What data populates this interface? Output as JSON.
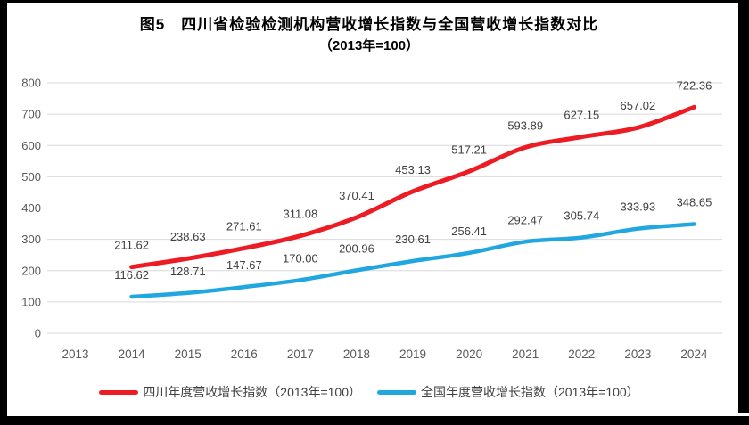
{
  "figure": {
    "title_line1": "图5　四川省检验检测机构营收增长指数与全国营收增长指数对比",
    "title_line2": "（2013年=100）"
  },
  "chart_data": {
    "type": "line",
    "categories": [
      "2013",
      "2014",
      "2015",
      "2016",
      "2017",
      "2018",
      "2019",
      "2020",
      "2021",
      "2022",
      "2023",
      "2024"
    ],
    "series": [
      {
        "id": "sichuan",
        "name": "四川年度营收增长指数（2013年=100）",
        "color": "#ed1c24",
        "start_index": 1,
        "values": [
          211.62,
          238.63,
          271.61,
          311.08,
          370.41,
          453.13,
          517.21,
          593.89,
          627.15,
          657.02,
          722.36
        ]
      },
      {
        "id": "national",
        "name": "全国年度营收增长指数（2013年=100）",
        "color": "#21a7e0",
        "start_index": 1,
        "values": [
          116.62,
          128.71,
          147.67,
          170.0,
          200.96,
          230.61,
          256.41,
          292.47,
          305.74,
          333.93,
          348.65
        ]
      }
    ],
    "ylim": [
      0,
      800
    ],
    "ytick_step": 100,
    "grid": true,
    "data_labels": true,
    "label_decimals": 2,
    "legend_position": "bottom"
  },
  "colors": {
    "gridline": "#d9d9d9",
    "tick_text": "#595959",
    "data_label_text": "#404040",
    "title_text": "#000000",
    "frame": "#000000",
    "background": "#ffffff"
  }
}
